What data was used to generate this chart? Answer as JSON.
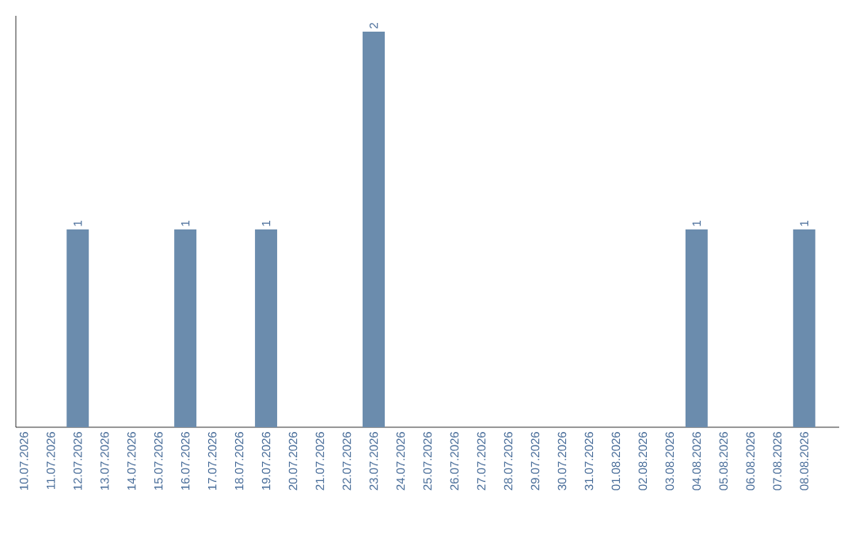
{
  "chart_data": {
    "type": "bar",
    "categories": [
      "10.07.2026",
      "11.07.2026",
      "12.07.2026",
      "13.07.2026",
      "14.07.2026",
      "15.07.2026",
      "16.07.2026",
      "17.07.2026",
      "18.07.2026",
      "19.07.2026",
      "20.07.2026",
      "21.07.2026",
      "22.07.2026",
      "23.07.2026",
      "24.07.2026",
      "25.07.2026",
      "26.07.2026",
      "27.07.2026",
      "28.07.2026",
      "29.07.2026",
      "30.07.2026",
      "31.07.2026",
      "01.08.2026",
      "02.08.2026",
      "03.08.2026",
      "04.08.2026",
      "05.08.2026",
      "06.08.2026",
      "07.08.2026",
      "08.08.2026"
    ],
    "values": [
      0,
      0,
      1,
      0,
      0,
      0,
      1,
      0,
      0,
      1,
      0,
      0,
      0,
      2,
      0,
      0,
      0,
      0,
      0,
      0,
      0,
      0,
      0,
      0,
      0,
      1,
      0,
      0,
      0,
      1
    ],
    "value_labels": [
      null,
      null,
      "1",
      null,
      null,
      null,
      "1",
      null,
      null,
      "1",
      null,
      null,
      null,
      "2",
      null,
      null,
      null,
      null,
      null,
      null,
      null,
      null,
      null,
      null,
      null,
      "1",
      null,
      null,
      null,
      "1"
    ],
    "color": "#6b8cad",
    "grid": false
  }
}
